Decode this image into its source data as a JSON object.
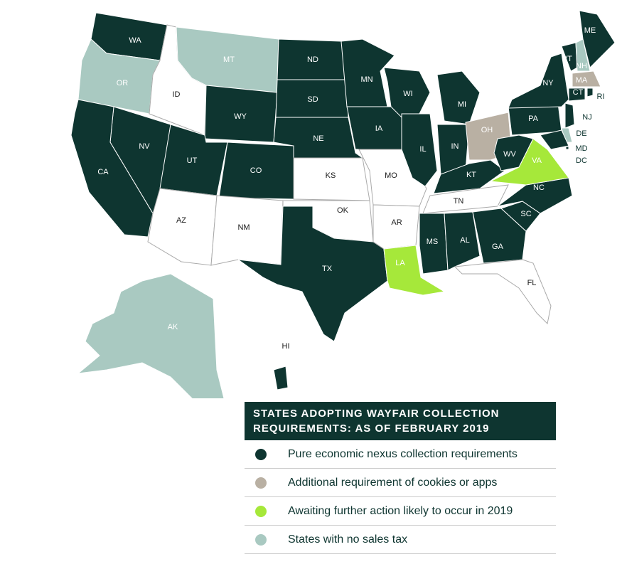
{
  "map": {
    "states": [
      {
        "label": "WA",
        "color": "#0e3530"
      },
      {
        "label": "OR",
        "color": "#a9c9c1"
      },
      {
        "label": "ID",
        "color": "#ffffff"
      },
      {
        "label": "MT",
        "color": "#a9c9c1"
      },
      {
        "label": "WY",
        "color": "#0e3530"
      },
      {
        "label": "NV",
        "color": "#0e3530"
      },
      {
        "label": "CA",
        "color": "#0e3530"
      },
      {
        "label": "UT",
        "color": "#0e3530"
      },
      {
        "label": "CO",
        "color": "#0e3530"
      },
      {
        "label": "AZ",
        "color": "#ffffff"
      },
      {
        "label": "NM",
        "color": "#ffffff"
      },
      {
        "label": "ND",
        "color": "#0e3530"
      },
      {
        "label": "SD",
        "color": "#0e3530"
      },
      {
        "label": "NE",
        "color": "#0e3530"
      },
      {
        "label": "KS",
        "color": "#ffffff"
      },
      {
        "label": "OK",
        "color": "#ffffff"
      },
      {
        "label": "TX",
        "color": "#0e3530"
      },
      {
        "label": "MN",
        "color": "#0e3530"
      },
      {
        "label": "IA",
        "color": "#0e3530"
      },
      {
        "label": "MO",
        "color": "#ffffff"
      },
      {
        "label": "AR",
        "color": "#ffffff"
      },
      {
        "label": "LA",
        "color": "#a6e83a"
      },
      {
        "label": "WI",
        "color": "#0e3530"
      },
      {
        "label": "IL",
        "color": "#0e3530"
      },
      {
        "label": "MI",
        "color": "#0e3530"
      },
      {
        "label": "IN",
        "color": "#0e3530"
      },
      {
        "label": "OH",
        "color": "#b9b0a3"
      },
      {
        "label": "KT",
        "color": "#0e3530"
      },
      {
        "label": "TN",
        "color": "#ffffff"
      },
      {
        "label": "MS",
        "color": "#0e3530"
      },
      {
        "label": "AL",
        "color": "#0e3530"
      },
      {
        "label": "GA",
        "color": "#0e3530"
      },
      {
        "label": "FL",
        "color": "#ffffff"
      },
      {
        "label": "SC",
        "color": "#0e3530"
      },
      {
        "label": "NC",
        "color": "#0e3530"
      },
      {
        "label": "VA",
        "color": "#a6e83a"
      },
      {
        "label": "WV",
        "color": "#0e3530"
      },
      {
        "label": "PA",
        "color": "#0e3530"
      },
      {
        "label": "NY",
        "color": "#0e3530"
      },
      {
        "label": "VT",
        "color": "#0e3530"
      },
      {
        "label": "NH",
        "color": "#a9c9c1"
      },
      {
        "label": "ME",
        "color": "#0e3530"
      },
      {
        "label": "MA",
        "color": "#b9b0a3"
      },
      {
        "label": "CT",
        "color": "#0e3530"
      },
      {
        "label": "RI",
        "color": "#0e3530"
      },
      {
        "label": "NJ",
        "color": "#0e3530"
      },
      {
        "label": "DE",
        "color": "#a9c9c1"
      },
      {
        "label": "MD",
        "color": "#0e3530"
      },
      {
        "label": "DC",
        "color": "#0e3530"
      },
      {
        "label": "AK",
        "color": "#a9c9c1"
      },
      {
        "label": "HI",
        "color": "#0e3530"
      }
    ]
  },
  "legend": {
    "title": "STATES ADOPTING WAYFAIR COLLECTION REQUIREMENTS: AS OF FEBRUARY 2019",
    "items": [
      {
        "label": "Pure economic nexus collection requirements",
        "color": "#0e3530"
      },
      {
        "label": "Additional requirement of cookies or apps",
        "color": "#b9b0a3"
      },
      {
        "label": "Awaiting further action likely to occur in 2019",
        "color": "#a6e83a"
      },
      {
        "label": "States with no sales tax",
        "color": "#a9c9c1"
      }
    ]
  }
}
